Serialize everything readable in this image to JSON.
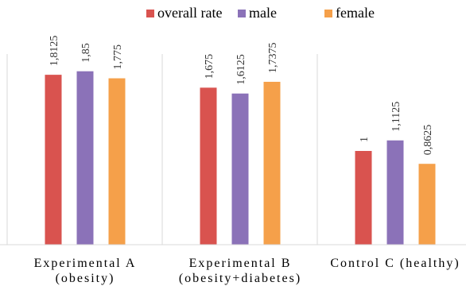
{
  "chart_data": {
    "type": "bar",
    "categories": [
      [
        "Experimental A",
        "(obesity)"
      ],
      [
        "Experimental B",
        "(obesity+diabetes)"
      ],
      [
        "Control C (healthy)",
        ""
      ]
    ],
    "series": [
      {
        "name": "overall rate",
        "color": "#d9534f",
        "values": [
          1.8125,
          1.675,
          1
        ],
        "labels": [
          "1,8125",
          "1,675",
          "1"
        ]
      },
      {
        "name": "male",
        "color": "#8b72b8",
        "values": [
          1.85,
          1.6125,
          1.1125
        ],
        "labels": [
          "1,85",
          "1,6125",
          "1,1125"
        ]
      },
      {
        "name": "female",
        "color": "#f5a04a",
        "values": [
          1.775,
          1.7375,
          0.8625
        ],
        "labels": [
          "1,775",
          "1,7375",
          "0,8625"
        ]
      }
    ],
    "ylim": [
      0,
      2
    ],
    "legend_position": "top",
    "grid": false,
    "title": "",
    "xlabel": "",
    "ylabel": ""
  }
}
